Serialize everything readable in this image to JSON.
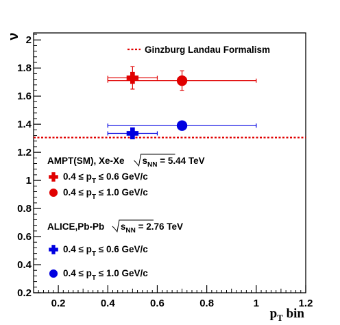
{
  "chart_data": {
    "type": "scatter",
    "title": "",
    "ylabel": "ν",
    "xlabel": {
      "main": "p",
      "sub": "T",
      "rest": " bin"
    },
    "xlim": [
      0.1,
      1.2
    ],
    "ylim": [
      0.2,
      2.05
    ],
    "xticks": [
      {
        "v": 0.2,
        "label": "0.2"
      },
      {
        "v": 0.4,
        "label": "0.4"
      },
      {
        "v": 0.6,
        "label": "0.6"
      },
      {
        "v": 0.8,
        "label": "0.8"
      },
      {
        "v": 1.0,
        "label": "1"
      },
      {
        "v": 1.2,
        "label": "1.2"
      }
    ],
    "yticks": [
      {
        "v": 0.2,
        "label": "0.2"
      },
      {
        "v": 0.4,
        "label": "0.4"
      },
      {
        "v": 0.6,
        "label": "0.6"
      },
      {
        "v": 0.8,
        "label": "0.8"
      },
      {
        "v": 1.0,
        "label": "1"
      },
      {
        "v": 1.2,
        "label": "1.2"
      },
      {
        "v": 1.4,
        "label": "1.4"
      },
      {
        "v": 1.6,
        "label": "1.6"
      },
      {
        "v": 1.8,
        "label": "1.8"
      },
      {
        "v": 2.0,
        "label": "2"
      }
    ],
    "grid": false,
    "reference_line": {
      "y": 1.305,
      "color": "#e00000",
      "label": "Ginzburg Landau Formalism"
    },
    "groups": [
      {
        "header": "AMPT(SM), Xe-Xe",
        "energy": {
          "sym": "s",
          "sub": "NN",
          "rest": " = 5.44 TeV"
        },
        "color": "#e00000",
        "entries": [
          {
            "marker": "cross",
            "label": {
              "pre": "0.4 ≤ p",
              "sub": "T",
              "post": " ≤ 0.6 GeV/c"
            },
            "x": 0.5,
            "y": 1.73,
            "xerr": 0.1,
            "yerr": 0.08
          },
          {
            "marker": "circle",
            "label": {
              "pre": "0.4 ≤ p",
              "sub": "T",
              "post": " ≤ 1.0 GeV/c"
            },
            "x": 0.7,
            "y": 1.71,
            "xerr": 0.3,
            "yerr": 0.07
          }
        ]
      },
      {
        "header": "ALICE,Pb-Pb",
        "energy": {
          "sym": "s",
          "sub": "NN",
          "rest": " = 2.76 TeV"
        },
        "color": "#0000e0",
        "entries": [
          {
            "marker": "cross",
            "label": {
              "pre": "0.4 ≤ p",
              "sub": "T",
              "post": " ≤ 0.6 GeV/c"
            },
            "x": 0.5,
            "y": 1.335,
            "xerr": 0.1,
            "yerr": 0.0
          },
          {
            "marker": "circle",
            "label": {
              "pre": "0.4 ≤ p",
              "sub": "T",
              "post": " ≤ 1.0 GeV/c"
            },
            "x": 0.7,
            "y": 1.39,
            "xerr": 0.3,
            "yerr": 0.0
          }
        ]
      }
    ]
  }
}
